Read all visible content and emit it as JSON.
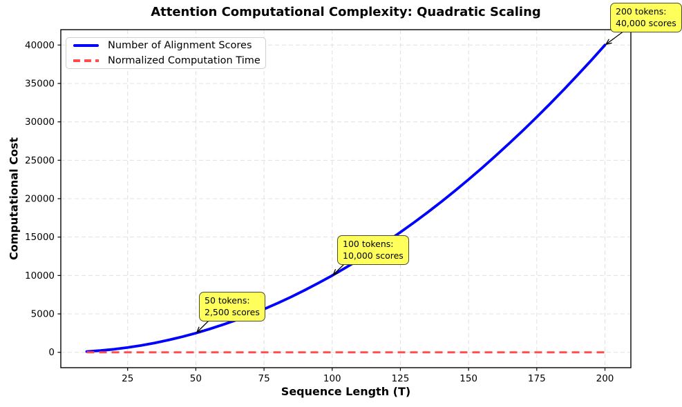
{
  "title": "Attention Computational Complexity: Quadratic Scaling",
  "axes": {
    "xlabel": "Sequence Length (T)",
    "ylabel": "Computational Cost"
  },
  "legend": {
    "position": "upper left",
    "items": [
      {
        "label": "Number of Alignment Scores",
        "color": "#0000ff",
        "line_style": "solid"
      },
      {
        "label": "Normalized Computation Time",
        "color": "#ff4d4d",
        "line_style": "dashed"
      }
    ]
  },
  "chart_data": {
    "type": "line",
    "title": "Attention Computational Complexity: Quadratic Scaling",
    "xlabel": "Sequence Length (T)",
    "ylabel": "Computational Cost",
    "xlim": [
      0.5,
      209.5
    ],
    "ylim": [
      -2000,
      42000
    ],
    "xticks": [
      25,
      50,
      75,
      100,
      125,
      150,
      175,
      200
    ],
    "yticks": [
      0,
      5000,
      10000,
      15000,
      20000,
      25000,
      30000,
      35000,
      40000
    ],
    "grid": true,
    "grid_color": "#e0e0e0",
    "legend_position": "upper left",
    "series": [
      {
        "name": "Number of Alignment Scores",
        "color": "#0000ff",
        "style": "solid",
        "width": 3.8,
        "x": [
          10,
          15,
          20,
          25,
          30,
          35,
          40,
          45,
          50,
          55,
          60,
          65,
          70,
          75,
          80,
          85,
          90,
          95,
          100,
          105,
          110,
          115,
          120,
          125,
          130,
          135,
          140,
          145,
          150,
          155,
          160,
          165,
          170,
          175,
          180,
          185,
          190,
          195,
          200
        ],
        "y": [
          100,
          225,
          400,
          625,
          900,
          1225,
          1600,
          2025,
          2500,
          3025,
          3600,
          4225,
          4900,
          5625,
          6400,
          7225,
          8100,
          9025,
          10000,
          11025,
          12100,
          13225,
          14400,
          15625,
          16900,
          18225,
          19600,
          21025,
          22500,
          24025,
          25600,
          27225,
          28900,
          30625,
          32400,
          34225,
          36100,
          38025,
          40000
        ]
      },
      {
        "name": "Normalized Computation Time",
        "color": "#ff4d4d",
        "style": "dashed",
        "width": 3,
        "x": [
          10,
          200
        ],
        "y": [
          1,
          1
        ]
      }
    ],
    "annotations": [
      {
        "line1": "50 tokens:",
        "line2": "2,500 scores",
        "x": 50,
        "y": 2500
      },
      {
        "line1": "100 tokens:",
        "line2": "10,000 scores",
        "x": 100,
        "y": 10000
      },
      {
        "line1": "200 tokens:",
        "line2": "40,000 scores",
        "x": 200,
        "y": 40000
      }
    ],
    "annotation_style": {
      "bg": "#ffff5c",
      "border": "#4a4a32",
      "arrow_color": "#000000"
    }
  }
}
